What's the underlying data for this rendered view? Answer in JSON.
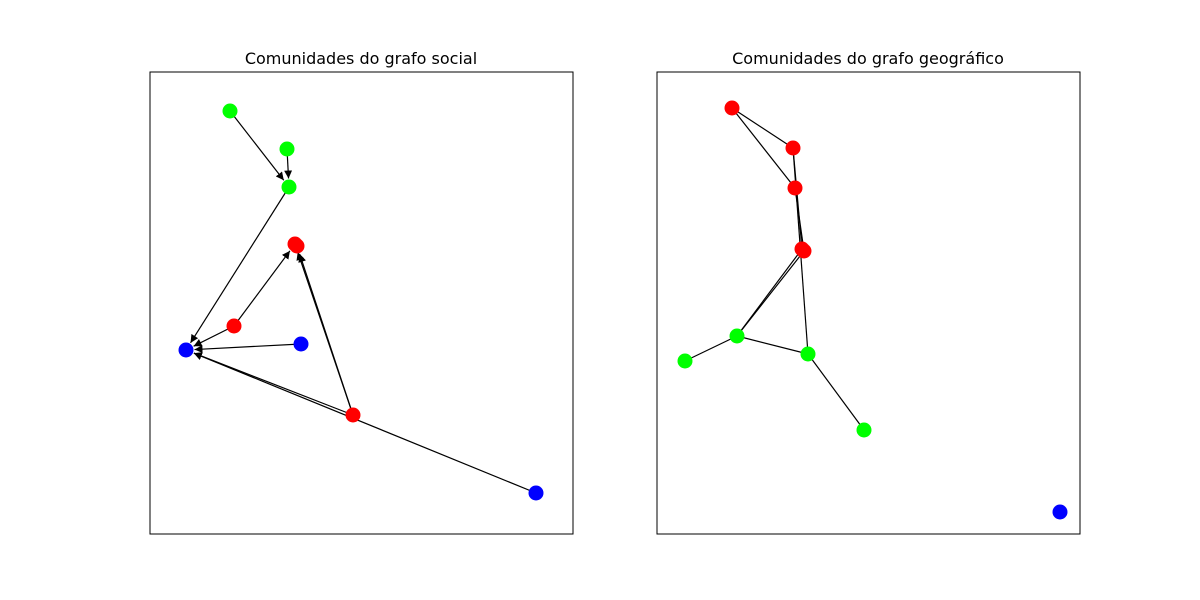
{
  "panels": [
    {
      "title": "Comunidades do grafo social"
    },
    {
      "title": "Comunidades do grafo geográfico"
    }
  ]
}
